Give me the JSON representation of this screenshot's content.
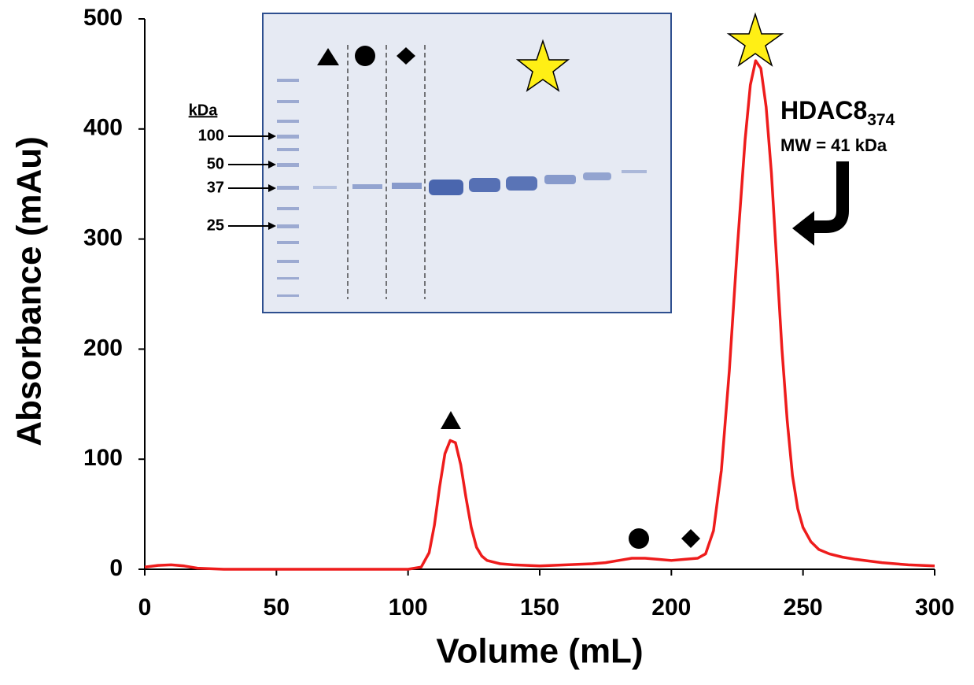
{
  "chart_data": {
    "type": "line",
    "x": [
      0,
      5,
      10,
      15,
      20,
      30,
      50,
      100,
      105,
      108,
      110,
      112,
      114,
      116,
      118,
      120,
      122,
      124,
      126,
      128,
      130,
      135,
      140,
      150,
      160,
      170,
      175,
      180,
      185,
      190,
      195,
      200,
      205,
      210,
      213,
      216,
      219,
      222,
      225,
      228,
      230,
      232,
      234,
      236,
      238,
      240,
      242,
      244,
      246,
      248,
      250,
      253,
      256,
      260,
      265,
      270,
      280,
      290,
      300
    ],
    "values": [
      2,
      3.5,
      4,
      3,
      1,
      0,
      0,
      0,
      2,
      15,
      40,
      75,
      105,
      117,
      115,
      95,
      65,
      38,
      20,
      12,
      8,
      5,
      4,
      3,
      4,
      5,
      6,
      8,
      10,
      10,
      9,
      8,
      9,
      10,
      14,
      35,
      90,
      180,
      290,
      390,
      440,
      462,
      455,
      420,
      360,
      280,
      200,
      135,
      85,
      55,
      38,
      25,
      18,
      14,
      11,
      9,
      6,
      4,
      3
    ],
    "color": "#ee1c1c",
    "xlabel": "Volume (mL)",
    "ylabel": "Absorbance (mAu)",
    "xlim": [
      0,
      300
    ],
    "ylim": [
      0,
      500
    ],
    "xticks": [
      0,
      50,
      100,
      150,
      200,
      250,
      300
    ],
    "yticks": [
      0,
      100,
      200,
      300,
      400,
      500
    ],
    "annotations": {
      "protein": "HDAC8",
      "protein_subscript": "374",
      "mw": "MW = 41 kDa",
      "gel_unit": "kDa",
      "gel_markers": [
        "100",
        "50",
        "37",
        "25"
      ]
    }
  }
}
